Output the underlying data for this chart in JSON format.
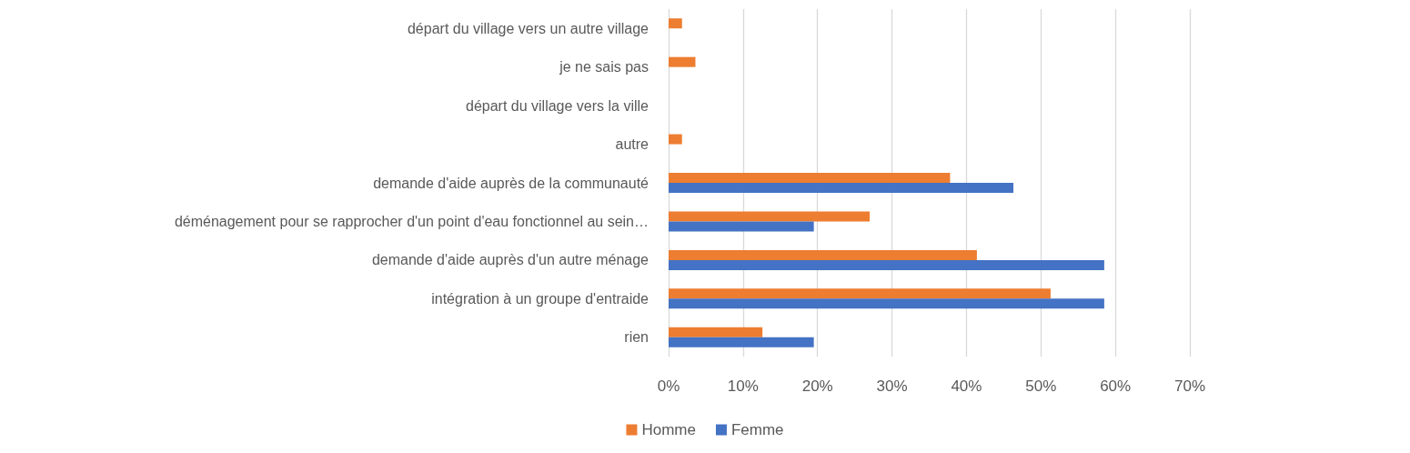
{
  "chart_data": {
    "type": "bar",
    "orientation": "horizontal",
    "categories": [
      "départ du village vers un autre village",
      "je ne sais pas",
      "départ du village vers la ville",
      "autre",
      "demande d'aide auprès de la communauté",
      "déménagement pour se rapprocher d'un point d'eau fonctionnel au sein…",
      "demande d'aide auprès d'un autre ménage",
      "intégration à un groupe d'entraide",
      "rien"
    ],
    "series": [
      {
        "name": "Homme",
        "color": "#ed7d31",
        "values": [
          1.8,
          3.6,
          0,
          1.8,
          37.8,
          27.0,
          41.4,
          51.3,
          12.6
        ]
      },
      {
        "name": "Femme",
        "color": "#4472c4",
        "values": [
          0,
          0,
          0,
          0,
          46.3,
          19.5,
          58.5,
          58.5,
          19.5
        ]
      }
    ],
    "xlim": [
      0,
      70
    ],
    "xticks": [
      {
        "value": 0,
        "label": "0%"
      },
      {
        "value": 10,
        "label": "10%"
      },
      {
        "value": 20,
        "label": "20%"
      },
      {
        "value": 30,
        "label": "30%"
      },
      {
        "value": 40,
        "label": "40%"
      },
      {
        "value": 50,
        "label": "50%"
      },
      {
        "value": 60,
        "label": "60%"
      },
      {
        "value": 70,
        "label": "70%"
      }
    ],
    "grid": "x",
    "legend": "bottom"
  }
}
